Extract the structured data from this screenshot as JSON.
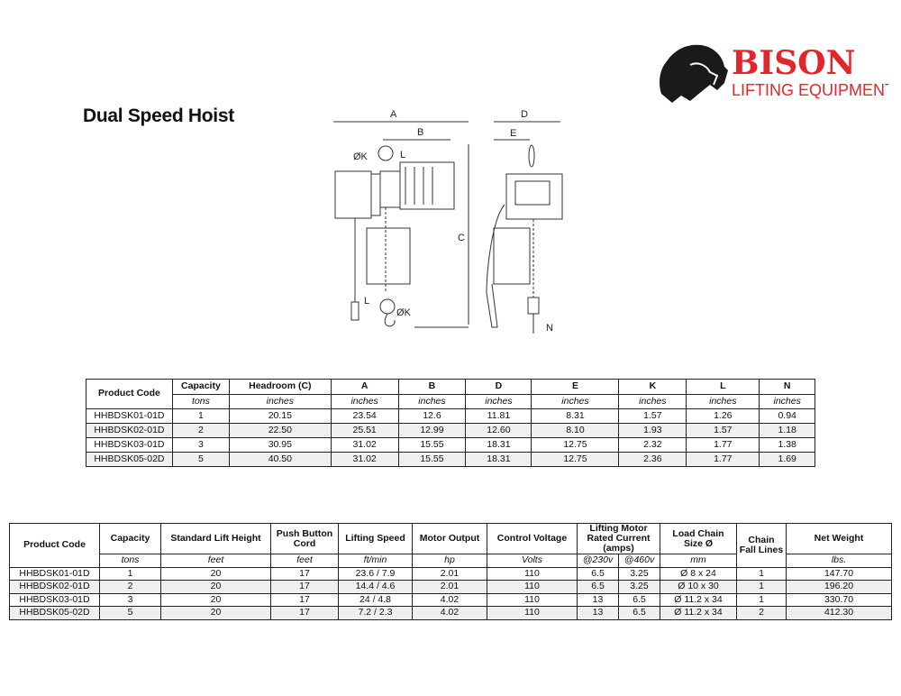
{
  "title": "Dual Speed Hoist",
  "logo": {
    "brand": "BISON",
    "tagline": "LIFTING EQUIPMENT",
    "brand_color": "#e3262b"
  },
  "drawing_labels": {
    "A": "A",
    "B": "B",
    "C": "C",
    "D": "D",
    "E": "E",
    "K_top": "ØK",
    "L_top": "L",
    "L_bottom": "L",
    "K_bottom": "ØK",
    "N": "N"
  },
  "dimensions_table": {
    "headers": [
      "Product Code",
      "Capacity",
      "Headroom (C)",
      "A",
      "B",
      "D",
      "E",
      "K",
      "L",
      "N"
    ],
    "units": [
      "tons",
      "inches",
      "inches",
      "inches",
      "inches",
      "inches",
      "inches",
      "inches",
      "inches"
    ],
    "rows": [
      [
        "HHBDSK01-01D",
        "1",
        "20.15",
        "23.54",
        "12.6",
        "11.81",
        "8.31",
        "1.57",
        "1.26",
        "0.94"
      ],
      [
        "HHBDSK02-01D",
        "2",
        "22.50",
        "25.51",
        "12.99",
        "12.60",
        "8.10",
        "1.93",
        "1.57",
        "1.18"
      ],
      [
        "HHBDSK03-01D",
        "3",
        "30.95",
        "31.02",
        "15.55",
        "18.31",
        "12.75",
        "2.32",
        "1.77",
        "1.38"
      ],
      [
        "HHBDSK05-02D",
        "5",
        "40.50",
        "31.02",
        "15.55",
        "18.31",
        "12.75",
        "2.36",
        "1.77",
        "1.69"
      ]
    ]
  },
  "specs_table": {
    "headers": [
      "Product Code",
      "Capacity",
      "Standard Lift Height",
      "Push Button Cord",
      "Lifting Speed",
      "Motor Output",
      "Control Voltage",
      "Lifting Motor Rated Current (amps)",
      "Load Chain Size Ø",
      "Chain Fall Lines",
      "Net Weight"
    ],
    "units": [
      "tons",
      "feet",
      "feet",
      "ft/min",
      "hp",
      "Volts",
      "@230v",
      "@460v",
      "mm",
      "lbs."
    ],
    "rows": [
      [
        "HHBDSK01-01D",
        "1",
        "20",
        "17",
        "23.6 / 7.9",
        "2.01",
        "110",
        "6.5",
        "3.25",
        "Ø 8 x 24",
        "1",
        "147.70"
      ],
      [
        "HHBDSK02-01D",
        "2",
        "20",
        "17",
        "14.4 / 4.6",
        "2.01",
        "110",
        "6.5",
        "3.25",
        "Ø 10 x 30",
        "1",
        "196.20"
      ],
      [
        "HHBDSK03-01D",
        "3",
        "20",
        "17",
        "24 / 4.8",
        "4.02",
        "110",
        "13",
        "6.5",
        "Ø 11.2 x 34",
        "1",
        "330.70"
      ],
      [
        "HHBDSK05-02D",
        "5",
        "20",
        "17",
        "7.2 / 2.3",
        "4.02",
        "110",
        "13",
        "6.5",
        "Ø 11.2 x 34",
        "2",
        "412.30"
      ]
    ]
  }
}
